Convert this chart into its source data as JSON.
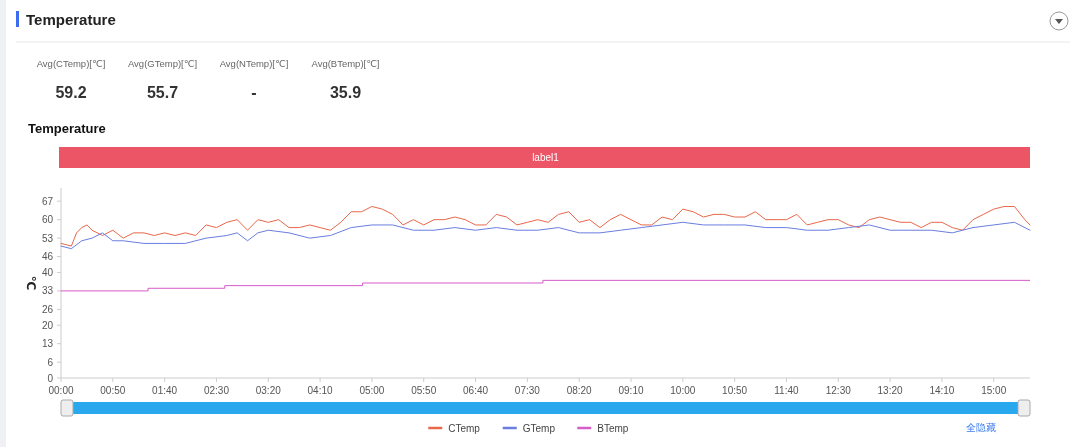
{
  "chart_data": [
    {
      "type": "other",
      "title": "Temperature",
      "annotations": [
        "Avg(CTemp)[℃]",
        "59.2",
        "Avg(GTemp)[℃]",
        "55.7",
        "Avg(NTemp)[℃]",
        "-",
        "Avg(BTemp)[℃]",
        "35.9"
      ]
    },
    {
      "type": "line",
      "title": "Temperature",
      "ylabel": "℃",
      "xlim": [
        0,
        935
      ],
      "ylim": [
        0,
        72
      ],
      "xticks": [
        {
          "value": 0,
          "label": "00:00"
        },
        {
          "value": 50,
          "label": "00:50"
        },
        {
          "value": 100,
          "label": "01:40"
        },
        {
          "value": 150,
          "label": "02:30"
        },
        {
          "value": 200,
          "label": "03:20"
        },
        {
          "value": 250,
          "label": "04:10"
        },
        {
          "value": 300,
          "label": "05:00"
        },
        {
          "value": 350,
          "label": "05:50"
        },
        {
          "value": 400,
          "label": "06:40"
        },
        {
          "value": 450,
          "label": "07:30"
        },
        {
          "value": 500,
          "label": "08:20"
        },
        {
          "value": 550,
          "label": "09:10"
        },
        {
          "value": 600,
          "label": "10:00"
        },
        {
          "value": 650,
          "label": "10:50"
        },
        {
          "value": 700,
          "label": "11:40"
        },
        {
          "value": 750,
          "label": "12:30"
        },
        {
          "value": 800,
          "label": "13:20"
        },
        {
          "value": 850,
          "label": "14:10"
        },
        {
          "value": 900,
          "label": "15:00"
        }
      ],
      "yticks": [
        0,
        6,
        13,
        20,
        26,
        33,
        40,
        46,
        53,
        60,
        67
      ],
      "series": [
        {
          "name": "CTemp",
          "color": "#e8684a",
          "x": [
            0,
            10,
            15,
            20,
            25,
            30,
            40,
            50,
            60,
            70,
            80,
            90,
            100,
            110,
            120,
            130,
            140,
            150,
            160,
            170,
            180,
            190,
            200,
            210,
            220,
            230,
            240,
            250,
            260,
            270,
            280,
            290,
            300,
            310,
            320,
            330,
            340,
            350,
            360,
            370,
            380,
            390,
            400,
            410,
            420,
            430,
            440,
            450,
            460,
            470,
            480,
            490,
            500,
            510,
            520,
            530,
            540,
            550,
            560,
            570,
            580,
            590,
            600,
            610,
            620,
            630,
            640,
            650,
            660,
            670,
            680,
            690,
            700,
            710,
            720,
            730,
            740,
            750,
            760,
            770,
            780,
            790,
            800,
            810,
            820,
            830,
            840,
            850,
            860,
            870,
            880,
            890,
            900,
            910,
            920,
            930,
            935
          ],
          "values": [
            51,
            50,
            55,
            57,
            58,
            56,
            54,
            56,
            53,
            55,
            55,
            54,
            55,
            54,
            55,
            54,
            58,
            57,
            59,
            60,
            56,
            60,
            59,
            60,
            57,
            57,
            58,
            57,
            56,
            59,
            63,
            63,
            65,
            64,
            62,
            58,
            60,
            58,
            60,
            60,
            61,
            60,
            58,
            58,
            62,
            61,
            58,
            59,
            60,
            59,
            62,
            63,
            59,
            60,
            57,
            60,
            62,
            60,
            58,
            58,
            61,
            60,
            64,
            63,
            61,
            62,
            62,
            61,
            61,
            63,
            60,
            60,
            60,
            62,
            58,
            59,
            60,
            60,
            58,
            57,
            60,
            61,
            60,
            59,
            59,
            57,
            59,
            59,
            57,
            56,
            60,
            62,
            64,
            65,
            65,
            60,
            58
          ]
        },
        {
          "name": "GTemp",
          "color": "#6a7ee0",
          "x": [
            0,
            10,
            20,
            30,
            40,
            50,
            60,
            80,
            100,
            120,
            140,
            160,
            170,
            180,
            190,
            200,
            220,
            240,
            260,
            280,
            300,
            320,
            340,
            360,
            380,
            400,
            420,
            440,
            460,
            480,
            500,
            520,
            540,
            560,
            580,
            600,
            620,
            640,
            660,
            680,
            700,
            720,
            740,
            760,
            780,
            800,
            820,
            840,
            860,
            880,
            900,
            920,
            935
          ],
          "values": [
            50,
            49,
            52,
            53,
            55,
            52,
            52,
            51,
            51,
            51,
            53,
            54,
            55,
            52,
            55,
            56,
            55,
            53,
            54,
            57,
            58,
            58,
            56,
            56,
            57,
            56,
            57,
            56,
            56,
            57,
            55,
            55,
            56,
            57,
            58,
            59,
            58,
            58,
            58,
            57,
            57,
            56,
            56,
            57,
            58,
            56,
            56,
            56,
            55,
            57,
            58,
            59,
            56
          ]
        },
        {
          "name": "BTemp",
          "type": "step",
          "color": "#d65cc8",
          "x": [
            0,
            84,
            158,
            291,
            465,
            935
          ],
          "values": [
            33,
            34,
            35,
            36,
            37,
            37
          ]
        }
      ],
      "legend": "bottom",
      "marker": "none",
      "line_style": "solid",
      "annotations": [
        "label1",
        "全隐藏"
      ]
    }
  ]
}
